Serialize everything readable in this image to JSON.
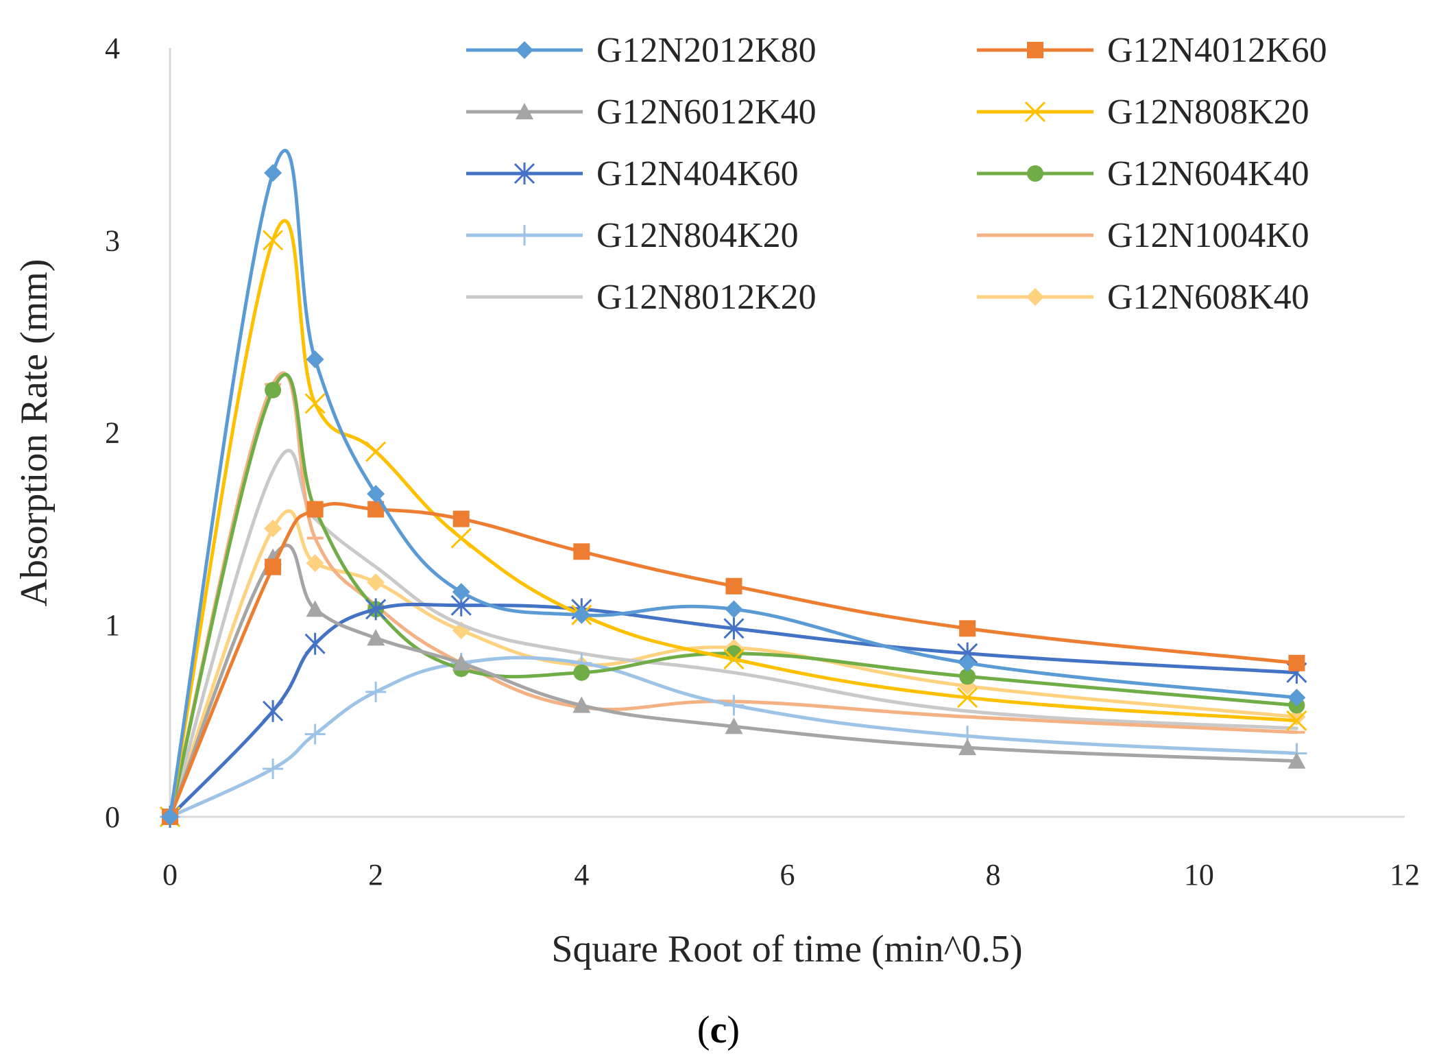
{
  "chart_data": {
    "type": "line",
    "title": "",
    "xlabel": "Square Root of time (min^0.5)",
    "ylabel": "Absorption Rate (mm)",
    "caption": "(c)",
    "caption_letter": "c",
    "caption_open": "(",
    "caption_close": ")",
    "xlim": [
      0,
      12
    ],
    "ylim": [
      0,
      4
    ],
    "xticks": [
      0,
      2,
      4,
      6,
      8,
      10,
      12
    ],
    "yticks": [
      0,
      1,
      2,
      3,
      4
    ],
    "grid": false,
    "legend_position": "top-right",
    "x": [
      0,
      1,
      1.41,
      2,
      2.83,
      4,
      5.48,
      7.75,
      10.95
    ],
    "series": [
      {
        "name": "G12N2012K80",
        "color": "#5B9BD5",
        "marker": "diamond",
        "values": [
          0,
          3.35,
          2.38,
          1.68,
          1.17,
          1.05,
          1.08,
          0.8,
          0.62
        ]
      },
      {
        "name": "G12N4012K60",
        "color": "#ED7D31",
        "marker": "square",
        "values": [
          0,
          1.3,
          1.6,
          1.6,
          1.55,
          1.38,
          1.2,
          0.98,
          0.8
        ]
      },
      {
        "name": "G12N6012K40",
        "color": "#A5A5A5",
        "marker": "triangle",
        "values": [
          0,
          1.35,
          1.08,
          0.93,
          0.8,
          0.58,
          0.47,
          0.36,
          0.29
        ]
      },
      {
        "name": "G12N808K20",
        "color": "#FFC000",
        "marker": "x",
        "values": [
          0,
          3.0,
          2.15,
          1.9,
          1.45,
          1.05,
          0.82,
          0.62,
          0.5
        ]
      },
      {
        "name": "G12N404K60",
        "color": "#4472C4",
        "marker": "asterisk",
        "values": [
          0,
          0.55,
          0.9,
          1.08,
          1.1,
          1.08,
          0.98,
          0.85,
          0.75
        ]
      },
      {
        "name": "G12N604K40",
        "color": "#70AD47",
        "marker": "circle",
        "values": [
          0,
          2.22,
          1.6,
          1.08,
          0.77,
          0.75,
          0.85,
          0.73,
          0.58
        ]
      },
      {
        "name": "G12N804K20",
        "color": "#9DC3E6",
        "marker": "plus",
        "values": [
          0,
          0.25,
          0.43,
          0.65,
          0.8,
          0.8,
          0.58,
          0.42,
          0.33
        ]
      },
      {
        "name": "G12N1004K0",
        "color": "#F4B183",
        "marker": "dash",
        "values": [
          0,
          2.25,
          1.45,
          1.1,
          0.8,
          0.57,
          0.6,
          0.52,
          0.44
        ]
      },
      {
        "name": "G12N8012K20",
        "color": "#C9C9C9",
        "marker": "none",
        "values": [
          0,
          1.8,
          1.55,
          1.3,
          1.0,
          0.85,
          0.75,
          0.55,
          0.46
        ]
      },
      {
        "name": "G12N608K40",
        "color": "#FFD27F",
        "marker": "diamond",
        "values": [
          0,
          1.5,
          1.32,
          1.22,
          0.97,
          0.79,
          0.88,
          0.68,
          0.52
        ]
      }
    ]
  }
}
